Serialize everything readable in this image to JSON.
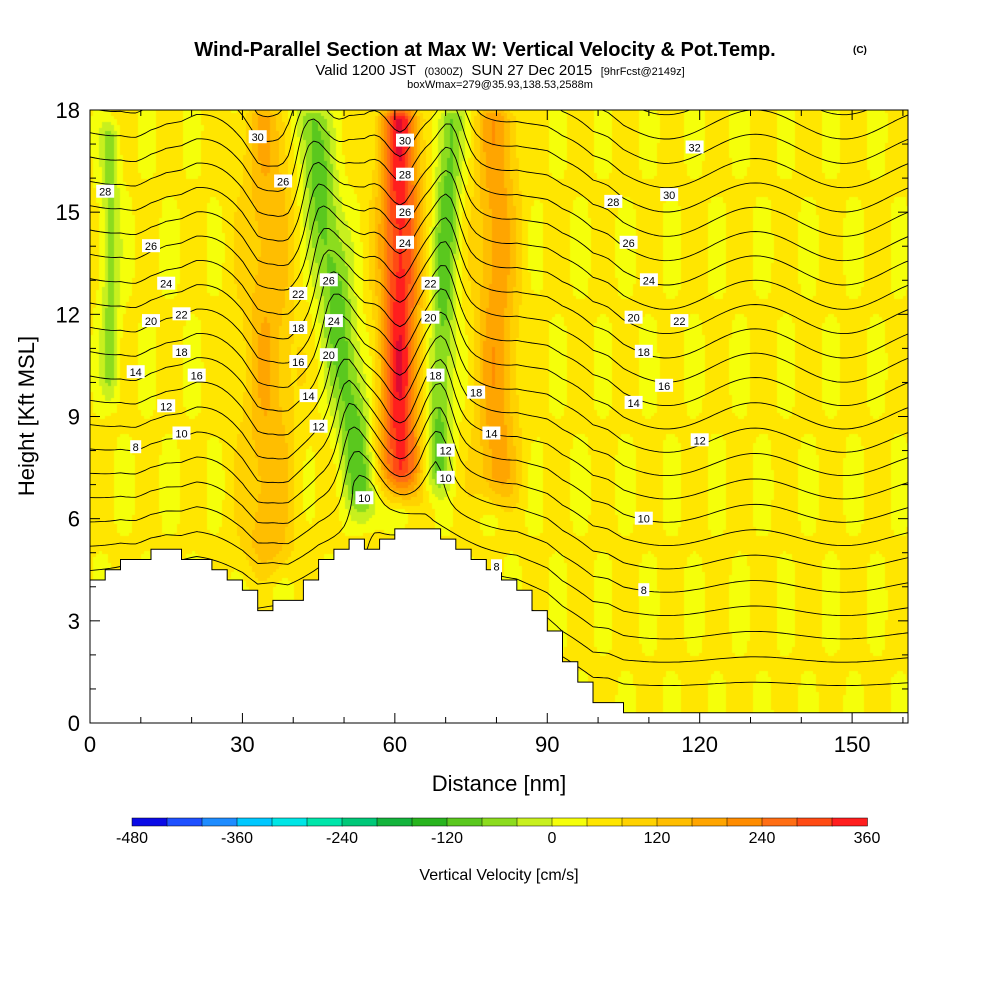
{
  "chart_data": {
    "type": "contour",
    "title": "Wind-Parallel Section at Max W: Vertical Velocity & Pot.Temp.",
    "title_mark": "(C)",
    "subtitle_line1_pre": "Valid 1200 JST",
    "subtitle_line1_z": "(0300Z)",
    "subtitle_line1_date": "SUN 27 Dec 2015",
    "subtitle_line1_fcst": "[9hrFcst@2149z]",
    "subtitle_line2": "boxWmax=279@35.93,138.53,2588m",
    "xlabel": "Distance [nm]",
    "ylabel": "Height [Kft MSL]",
    "xlim": [
      0,
      161
    ],
    "ylim": [
      0,
      18
    ],
    "x_ticks": [
      "0",
      "30",
      "60",
      "90",
      "120",
      "150"
    ],
    "y_ticks": [
      "0",
      "3",
      "6",
      "9",
      "12",
      "15",
      "18"
    ],
    "colorbar": {
      "title": "Vertical Velocity [cm/s]",
      "min": -480,
      "max": 360,
      "step": 40,
      "tick_labels": [
        "-480",
        "-360",
        "-240",
        "-120",
        "0",
        "120",
        "240",
        "360"
      ],
      "colors": [
        "#0a0ae6",
        "#1e50ff",
        "#1e8cff",
        "#00c8ff",
        "#00e6e6",
        "#00e6aa",
        "#00c878",
        "#14b43c",
        "#28b41e",
        "#5ac81e",
        "#8cdc1e",
        "#c8f01e",
        "#f5ff0a",
        "#ffe600",
        "#ffd200",
        "#ffbe00",
        "#ffa500",
        "#ff8c00",
        "#ff6e14",
        "#ff4b14",
        "#ff1e1e",
        "#dc0a32",
        "#b40a50",
        "#8c0a78",
        "#6e0a8c"
      ]
    },
    "velocity_features": [
      {
        "name": "updraft core",
        "x": 61,
        "width": 3.8,
        "w_max": 300,
        "z_min": 6.2,
        "z_max": 18
      },
      {
        "name": "downdraft band west",
        "x_bottom": 55,
        "x_top": 43,
        "width": 3.5,
        "w_min": -150,
        "z_min": 5.5,
        "z_max": 18
      },
      {
        "name": "downdraft band east",
        "x_bottom": 68,
        "x_top": 71,
        "width": 2.6,
        "w_min": -140,
        "z_min": 6.3,
        "z_max": 18
      },
      {
        "name": "updraft west",
        "x": 35,
        "width": 5,
        "w_max": 110,
        "z_min": 4,
        "z_max": 18
      },
      {
        "name": "updraft east",
        "x": 80,
        "width": 4,
        "w_max": 140,
        "z_min": 6,
        "z_max": 18
      },
      {
        "name": "weak downdraft far west",
        "x": 4,
        "width": 1.8,
        "w_min": -100,
        "z_min": 9,
        "z_max": 17.5
      }
    ],
    "terrain": {
      "x": [
        0,
        3,
        6,
        9,
        12,
        15,
        18,
        21,
        24,
        27,
        30,
        33,
        36,
        39,
        42,
        45,
        48,
        51,
        54,
        57,
        60,
        63,
        66,
        69,
        72,
        75,
        78,
        81,
        84,
        87,
        90,
        93,
        96,
        99,
        102,
        105,
        108,
        111,
        114,
        117,
        120,
        123,
        126,
        129,
        132,
        135,
        138,
        141,
        144,
        147,
        150,
        153,
        156,
        159,
        161
      ],
      "z": [
        4.2,
        4.5,
        4.8,
        4.8,
        5.1,
        5.1,
        4.8,
        4.8,
        4.5,
        4.2,
        3.9,
        3.3,
        3.6,
        3.6,
        4.2,
        4.8,
        5.1,
        5.4,
        5.1,
        5.4,
        5.7,
        5.7,
        5.7,
        5.4,
        5.1,
        4.8,
        4.5,
        4.2,
        3.9,
        3.3,
        2.7,
        1.8,
        1.2,
        0.6,
        0.6,
        0.3,
        0.3,
        0.3,
        0.3,
        0.3,
        0.3,
        0.3,
        0.3,
        0.3,
        0.3,
        0.3,
        0.3,
        0.3,
        0.3,
        0.3,
        0.3,
        0.3,
        0.3,
        0.3,
        0.3
      ]
    },
    "theta_contour_levels": [
      8,
      9,
      10,
      11,
      12,
      13,
      14,
      15,
      16,
      17,
      18,
      19,
      20,
      21,
      22,
      23,
      24,
      25,
      26,
      27,
      28,
      29,
      30,
      31,
      32
    ],
    "theta_labels": [
      {
        "text": "28",
        "x": 3,
        "z": 15.6
      },
      {
        "text": "26",
        "x": 12,
        "z": 14.0
      },
      {
        "text": "24",
        "x": 15,
        "z": 12.9
      },
      {
        "text": "22",
        "x": 18,
        "z": 12.0
      },
      {
        "text": "20",
        "x": 12,
        "z": 11.8
      },
      {
        "text": "18",
        "x": 18,
        "z": 10.9
      },
      {
        "text": "16",
        "x": 21,
        "z": 10.2
      },
      {
        "text": "14",
        "x": 9,
        "z": 10.3
      },
      {
        "text": "12",
        "x": 15,
        "z": 9.3
      },
      {
        "text": "10",
        "x": 18,
        "z": 8.5
      },
      {
        "text": "8",
        "x": 9,
        "z": 8.1
      },
      {
        "text": "30",
        "x": 33,
        "z": 17.2
      },
      {
        "text": "26",
        "x": 38,
        "z": 15.9
      },
      {
        "text": "22",
        "x": 41,
        "z": 12.6
      },
      {
        "text": "18",
        "x": 41,
        "z": 11.6
      },
      {
        "text": "16",
        "x": 41,
        "z": 10.6
      },
      {
        "text": "14",
        "x": 43,
        "z": 9.6
      },
      {
        "text": "12",
        "x": 45,
        "z": 8.7
      },
      {
        "text": "26",
        "x": 47,
        "z": 13.0
      },
      {
        "text": "24",
        "x": 48,
        "z": 11.8
      },
      {
        "text": "20",
        "x": 47,
        "z": 10.8
      },
      {
        "text": "10",
        "x": 54,
        "z": 6.6
      },
      {
        "text": "30",
        "x": 62,
        "z": 17.1
      },
      {
        "text": "28",
        "x": 62,
        "z": 16.1
      },
      {
        "text": "26",
        "x": 62,
        "z": 15.0
      },
      {
        "text": "24",
        "x": 62,
        "z": 14.1
      },
      {
        "text": "22",
        "x": 67,
        "z": 12.9
      },
      {
        "text": "20",
        "x": 67,
        "z": 11.9
      },
      {
        "text": "18",
        "x": 68,
        "z": 10.2
      },
      {
        "text": "12",
        "x": 70,
        "z": 8.0
      },
      {
        "text": "10",
        "x": 70,
        "z": 7.2
      },
      {
        "text": "18",
        "x": 76,
        "z": 9.7
      },
      {
        "text": "14",
        "x": 79,
        "z": 8.5
      },
      {
        "text": "8",
        "x": 80,
        "z": 4.6
      },
      {
        "text": "32",
        "x": 119,
        "z": 16.9
      },
      {
        "text": "30",
        "x": 114,
        "z": 15.5
      },
      {
        "text": "28",
        "x": 103,
        "z": 15.3
      },
      {
        "text": "26",
        "x": 106,
        "z": 14.1
      },
      {
        "text": "24",
        "x": 110,
        "z": 13.0
      },
      {
        "text": "22",
        "x": 116,
        "z": 11.8
      },
      {
        "text": "20",
        "x": 107,
        "z": 11.9
      },
      {
        "text": "18",
        "x": 109,
        "z": 10.9
      },
      {
        "text": "16",
        "x": 113,
        "z": 9.9
      },
      {
        "text": "14",
        "x": 107,
        "z": 9.4
      },
      {
        "text": "12",
        "x": 120,
        "z": 8.3
      },
      {
        "text": "10",
        "x": 109,
        "z": 6.0
      },
      {
        "text": "8",
        "x": 109,
        "z": 3.9
      }
    ]
  }
}
